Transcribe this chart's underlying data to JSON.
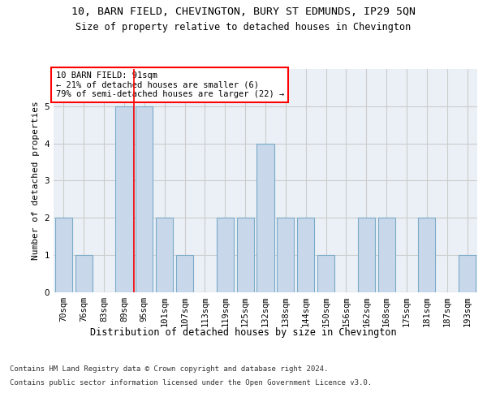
{
  "title1": "10, BARN FIELD, CHEVINGTON, BURY ST EDMUNDS, IP29 5QN",
  "title2": "Size of property relative to detached houses in Chevington",
  "xlabel": "Distribution of detached houses by size in Chevington",
  "ylabel": "Number of detached properties",
  "categories": [
    "70sqm",
    "76sqm",
    "83sqm",
    "89sqm",
    "95sqm",
    "101sqm",
    "107sqm",
    "113sqm",
    "119sqm",
    "125sqm",
    "132sqm",
    "138sqm",
    "144sqm",
    "150sqm",
    "156sqm",
    "162sqm",
    "168sqm",
    "175sqm",
    "181sqm",
    "187sqm",
    "193sqm"
  ],
  "values": [
    2,
    1,
    0,
    5,
    5,
    2,
    1,
    0,
    2,
    2,
    4,
    2,
    2,
    1,
    0,
    2,
    2,
    0,
    2,
    0,
    1
  ],
  "bar_color": "#c8d8ea",
  "bar_edge_color": "#7aaac8",
  "bar_edge_width": 0.8,
  "red_line_index": 3,
  "annotation_text": "10 BARN FIELD: 91sqm\n← 21% of detached houses are smaller (6)\n79% of semi-detached houses are larger (22) →",
  "annotation_box_color": "white",
  "annotation_box_edge": "red",
  "ylim": [
    0,
    6
  ],
  "yticks": [
    0,
    1,
    2,
    3,
    4,
    5,
    6
  ],
  "grid_color": "#cccccc",
  "background_color": "white",
  "footer1": "Contains HM Land Registry data © Crown copyright and database right 2024.",
  "footer2": "Contains public sector information licensed under the Open Government Licence v3.0.",
  "title1_fontsize": 9.5,
  "title2_fontsize": 8.5,
  "xlabel_fontsize": 8.5,
  "ylabel_fontsize": 8,
  "tick_fontsize": 7.5,
  "annotation_fontsize": 7.5,
  "footer_fontsize": 6.5
}
